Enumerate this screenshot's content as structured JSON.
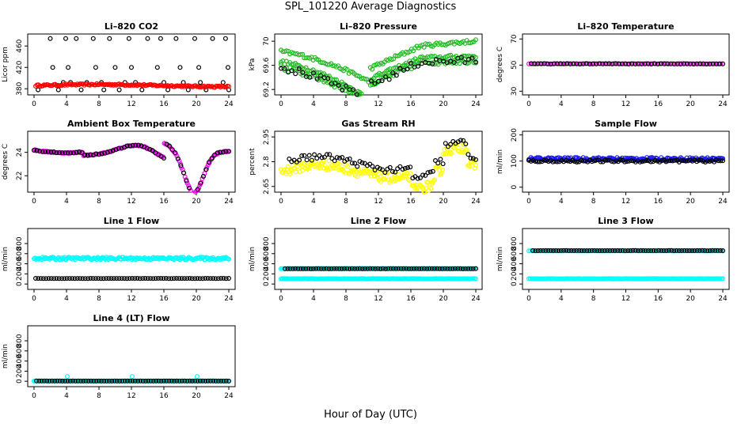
{
  "page": {
    "title": "SPL_101220  Average Diagnostics",
    "xlabel": "Hour of Day (UTC)"
  },
  "colors": {
    "black": "#000000",
    "red": "#ff0000",
    "green": "#22bb22",
    "magenta": "#ff00ff",
    "yellow": "#ffff00",
    "blue": "#1a1aff",
    "cyan": "#00ffff"
  },
  "chart_data": [
    {
      "type": "scatter",
      "title": "Li–820 CO2",
      "ylabel": "Licor ppm",
      "xlim": [
        0,
        24
      ],
      "ylim": [
        373,
        478
      ],
      "xticks": [
        0,
        4,
        8,
        12,
        16,
        20,
        24
      ],
      "yticks": [
        380,
        420,
        460
      ],
      "series": [
        {
          "name": "black",
          "color": "black",
          "points": [
            [
              0.5,
              378
            ],
            [
              2.0,
              474
            ],
            [
              2.3,
              420
            ],
            [
              2.6,
              388
            ],
            [
              3.0,
              378
            ],
            [
              3.6,
              392
            ],
            [
              3.9,
              474
            ],
            [
              4.2,
              420
            ],
            [
              4.5,
              392
            ],
            [
              5.2,
              474
            ],
            [
              5.8,
              378
            ],
            [
              6.5,
              392
            ],
            [
              7.3,
              474
            ],
            [
              7.6,
              420
            ],
            [
              8.3,
              392
            ],
            [
              8.6,
              378
            ],
            [
              9.3,
              474
            ],
            [
              10.0,
              420
            ],
            [
              10.5,
              378
            ],
            [
              11.2,
              392
            ],
            [
              11.7,
              474
            ],
            [
              12.0,
              420
            ],
            [
              12.5,
              392
            ],
            [
              13.3,
              378
            ],
            [
              14.0,
              474
            ],
            [
              15.2,
              420
            ],
            [
              15.6,
              474
            ],
            [
              16.0,
              392
            ],
            [
              16.5,
              378
            ],
            [
              17.5,
              474
            ],
            [
              18.0,
              420
            ],
            [
              18.4,
              392
            ],
            [
              19.0,
              378
            ],
            [
              19.8,
              474
            ],
            [
              20.3,
              420
            ],
            [
              20.5,
              392
            ],
            [
              21.2,
              378
            ],
            [
              22.0,
              474
            ],
            [
              23.3,
              392
            ],
            [
              23.6,
              474
            ],
            [
              23.9,
              420
            ],
            [
              24.0,
              378
            ]
          ]
        },
        {
          "name": "red",
          "color": "red",
          "range": [
            0.2,
            24
          ],
          "n": 140,
          "base": 386,
          "jitter": 1.5,
          "curve": "co2"
        }
      ]
    },
    {
      "type": "scatter",
      "title": "Li–820 Pressure",
      "ylabel": "kPa",
      "xlim": [
        0,
        24
      ],
      "ylim": [
        69.15,
        70.08
      ],
      "xticks": [
        0,
        4,
        8,
        12,
        16,
        20,
        24
      ],
      "yticks": [
        69.2,
        69.6,
        70.0
      ],
      "series": [
        {
          "name": "green-upper",
          "color": "green",
          "range": [
            0,
            24
          ],
          "n": 110,
          "curve": "press_up",
          "jitter": 0.03
        },
        {
          "name": "green-mid",
          "color": "green",
          "range": [
            0,
            24
          ],
          "n": 110,
          "curve": "press_mid",
          "jitter": 0.03
        },
        {
          "name": "green-lower",
          "color": "green",
          "range": [
            0,
            24
          ],
          "n": 110,
          "curve": "press_low",
          "jitter": 0.05
        },
        {
          "name": "black",
          "color": "black",
          "range": [
            0,
            24
          ],
          "n": 55,
          "curve": "press_low",
          "jitter": 0.06
        }
      ]
    },
    {
      "type": "scatter",
      "title": "Li–820 Temperature",
      "ylabel": "degrees C",
      "xlim": [
        0,
        24
      ],
      "ylim": [
        29,
        72
      ],
      "xticks": [
        0,
        4,
        8,
        12,
        16,
        20,
        24
      ],
      "yticks": [
        30,
        50,
        70
      ],
      "series": [
        {
          "name": "magenta",
          "color": "magenta",
          "range": [
            0,
            24
          ],
          "n": 90,
          "curve": "flat",
          "base": 51.0,
          "jitter": 0.2
        },
        {
          "name": "black",
          "color": "black",
          "range": [
            0.3,
            24
          ],
          "n": 60,
          "curve": "flat",
          "base": 51.0,
          "jitter": 0.2
        }
      ]
    },
    {
      "type": "scatter",
      "title": "Ambient Box Temperature",
      "ylabel": "degrees C",
      "xlim": [
        0,
        24
      ],
      "ylim": [
        20.8,
        25.6
      ],
      "xticks": [
        0,
        4,
        8,
        12,
        16,
        20,
        24
      ],
      "yticks": [
        22,
        24
      ],
      "series": [
        {
          "name": "magenta",
          "color": "magenta",
          "range": [
            0,
            24
          ],
          "n": 170,
          "curve": "ambient",
          "jitter": 0.05
        },
        {
          "name": "black",
          "color": "black",
          "range": [
            0,
            24
          ],
          "n": 70,
          "curve": "ambient",
          "jitter": 0.05
        }
      ]
    },
    {
      "type": "scatter",
      "title": "Gas Stream RH",
      "ylabel": "percent",
      "xlim": [
        0,
        24
      ],
      "ylim": [
        2.63,
        2.97
      ],
      "xticks": [
        0,
        4,
        8,
        12,
        16,
        20,
        24
      ],
      "yticks": [
        2.65,
        2.8,
        2.95
      ],
      "series": [
        {
          "name": "yellow",
          "color": "yellow",
          "range": [
            0,
            24
          ],
          "n": 200,
          "curve": "rh_y",
          "jitter": 0.03
        },
        {
          "name": "black",
          "color": "black",
          "range": [
            1,
            24
          ],
          "n": 75,
          "curve": "rh_b",
          "jitter": 0.02
        }
      ]
    },
    {
      "type": "scatter",
      "title": "Sample Flow",
      "ylabel": "ml/min",
      "xlim": [
        0,
        24
      ],
      "ylim": [
        -10,
        205
      ],
      "xticks": [
        0,
        4,
        8,
        12,
        16,
        20,
        24
      ],
      "yticks": [
        0,
        100,
        200
      ],
      "series": [
        {
          "name": "blue",
          "color": "blue",
          "range": [
            0,
            24
          ],
          "n": 190,
          "curve": "flat",
          "base": 108,
          "jitter": 6
        },
        {
          "name": "black",
          "color": "black",
          "range": [
            0,
            24
          ],
          "n": 90,
          "curve": "flat",
          "base": 100,
          "jitter": 4
        }
      ]
    },
    {
      "type": "scatter",
      "title": "Line 1 Flow",
      "ylabel": "ml/min",
      "xlim": [
        0,
        24
      ],
      "ylim": [
        -60,
        1050
      ],
      "xticks": [
        0,
        4,
        8,
        12,
        16,
        20,
        24
      ],
      "yticks": [
        0,
        200,
        400,
        600,
        800
      ],
      "series": [
        {
          "name": "cyan",
          "color": "cyan",
          "range": [
            0,
            24
          ],
          "n": 200,
          "curve": "flat",
          "base": 505,
          "jitter": 25
        },
        {
          "name": "black",
          "color": "black",
          "range": [
            0.2,
            24
          ],
          "n": 75,
          "curve": "flat",
          "base": 110,
          "jitter": 2
        }
      ]
    },
    {
      "type": "scatter",
      "title": "Line 2 Flow",
      "ylabel": "ml/min",
      "xlim": [
        0,
        24
      ],
      "ylim": [
        -60,
        1050
      ],
      "xticks": [
        0,
        4,
        8,
        12,
        16,
        20,
        24
      ],
      "yticks": [
        0,
        200,
        400,
        600,
        800
      ],
      "series": [
        {
          "name": "cyan-upper",
          "color": "cyan",
          "range": [
            0,
            24
          ],
          "n": 140,
          "curve": "flat",
          "base": 305,
          "jitter": 3
        },
        {
          "name": "cyan-lower",
          "color": "cyan",
          "range": [
            0,
            24
          ],
          "n": 140,
          "curve": "flat",
          "base": 105,
          "jitter": 3
        },
        {
          "name": "black",
          "color": "black",
          "range": [
            0.5,
            24
          ],
          "n": 75,
          "curve": "flat",
          "base": 302,
          "jitter": 2
        }
      ]
    },
    {
      "type": "scatter",
      "title": "Line 3 Flow",
      "ylabel": "ml/min",
      "xlim": [
        0,
        24
      ],
      "ylim": [
        -60,
        1050
      ],
      "xticks": [
        0,
        4,
        8,
        12,
        16,
        20,
        24
      ],
      "yticks": [
        0,
        200,
        400,
        600,
        800
      ],
      "series": [
        {
          "name": "cyan-upper",
          "color": "cyan",
          "range": [
            0,
            24
          ],
          "n": 120,
          "curve": "flat",
          "base": 655,
          "jitter": 3
        },
        {
          "name": "cyan-lower",
          "color": "cyan",
          "range": [
            0,
            24
          ],
          "n": 140,
          "curve": "flat",
          "base": 105,
          "jitter": 2
        },
        {
          "name": "black",
          "color": "black",
          "range": [
            0.5,
            24
          ],
          "n": 75,
          "curve": "flat",
          "base": 660,
          "jitter": 2
        }
      ]
    },
    {
      "type": "scatter",
      "title": "Line 4 (LT) Flow",
      "ylabel": "ml/min",
      "xlim": [
        0,
        24
      ],
      "ylim": [
        -60,
        1050
      ],
      "xticks": [
        0,
        4,
        8,
        12,
        16,
        20,
        24
      ],
      "yticks": [
        0,
        200,
        400,
        600,
        800
      ],
      "series": [
        {
          "name": "cyan",
          "color": "cyan",
          "range": [
            0,
            24
          ],
          "n": 160,
          "curve": "flat",
          "base": 5,
          "jitter": 2,
          "extra": [
            [
              4.1,
              95
            ],
            [
              12.1,
              95
            ],
            [
              20.1,
              95
            ]
          ]
        },
        {
          "name": "black",
          "color": "black",
          "range": [
            0.3,
            24
          ],
          "n": 75,
          "curve": "flat",
          "base": 5,
          "jitter": 1
        }
      ]
    }
  ]
}
